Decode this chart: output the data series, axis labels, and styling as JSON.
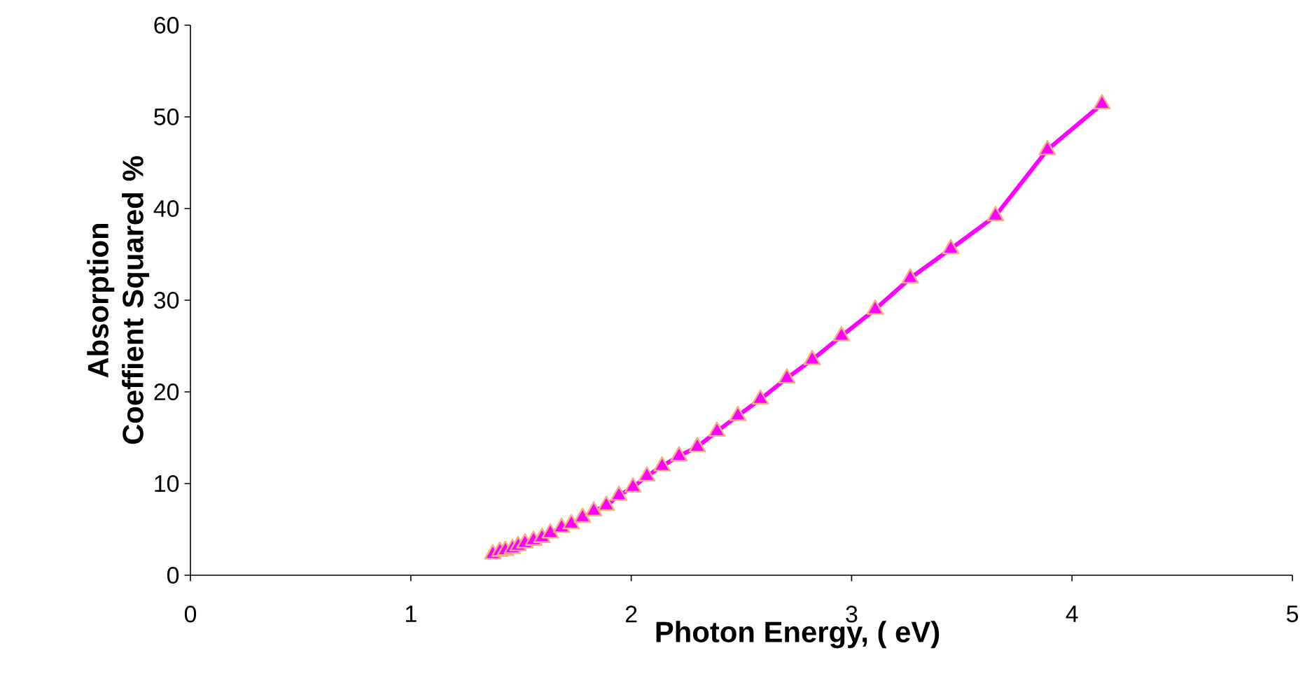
{
  "chart_data": {
    "type": "line",
    "xlabel": "Photon Energy, ( eV)",
    "ylabel": "Absorption Coeffient Squared %",
    "xlim": [
      0,
      5
    ],
    "ylim": [
      0,
      60
    ],
    "xticks": [
      0,
      1,
      2,
      3,
      4,
      5
    ],
    "yticks": [
      0,
      10,
      20,
      30,
      40,
      50,
      60
    ],
    "grid": false,
    "marker": "triangle",
    "line_style": "solid",
    "series": [
      {
        "color": "#ff00ff",
        "x": [
          1.372,
          1.404,
          1.429,
          1.461,
          1.487,
          1.518,
          1.557,
          1.595,
          1.633,
          1.684,
          1.728,
          1.779,
          1.83,
          1.887,
          1.944,
          2.008,
          2.071,
          2.14,
          2.217,
          2.3,
          2.389,
          2.484,
          2.586,
          2.706,
          2.821,
          2.954,
          3.107,
          3.266,
          3.45,
          3.653,
          3.888,
          4.136
        ],
        "values": [
          2.3,
          2.6,
          2.7,
          2.9,
          3.2,
          3.5,
          3.8,
          4.1,
          4.6,
          5.2,
          5.6,
          6.3,
          7.0,
          7.6,
          8.7,
          9.6,
          10.8,
          11.9,
          13.0,
          14.0,
          15.7,
          17.4,
          19.2,
          21.5,
          23.5,
          26.1,
          29.0,
          32.4,
          35.6,
          39.2,
          46.4,
          51.4
        ]
      }
    ]
  }
}
